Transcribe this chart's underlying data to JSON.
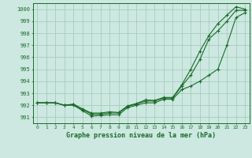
{
  "xlabel": "Graphe pression niveau de la mer (hPa)",
  "xlim": [
    -0.5,
    23.5
  ],
  "ylim": [
    990.5,
    1000.5
  ],
  "yticks": [
    991,
    992,
    993,
    994,
    995,
    996,
    997,
    998,
    999,
    1000
  ],
  "xticks": [
    0,
    1,
    2,
    3,
    4,
    5,
    6,
    7,
    8,
    9,
    10,
    11,
    12,
    13,
    14,
    15,
    16,
    17,
    18,
    19,
    20,
    21,
    22,
    23
  ],
  "background_color": "#cce8e0",
  "grid_color": "#a8ccbe",
  "line_color": "#1a6b2a",
  "line1": [
    992.2,
    992.2,
    992.2,
    992.0,
    992.0,
    991.55,
    991.1,
    991.15,
    991.2,
    991.2,
    991.8,
    992.0,
    992.2,
    992.2,
    992.5,
    992.5,
    993.3,
    993.6,
    994.0,
    994.5,
    995.0,
    997.0,
    999.3,
    999.7
  ],
  "line2": [
    992.2,
    992.2,
    992.2,
    992.0,
    992.05,
    991.65,
    991.25,
    991.25,
    991.35,
    991.35,
    991.9,
    992.1,
    992.35,
    992.35,
    992.6,
    992.6,
    993.6,
    994.5,
    995.8,
    997.5,
    998.2,
    999.0,
    999.9,
    999.9
  ],
  "line3": [
    992.2,
    992.2,
    992.2,
    992.0,
    992.1,
    991.7,
    991.35,
    991.35,
    991.45,
    991.4,
    991.95,
    992.15,
    992.45,
    992.4,
    992.65,
    992.65,
    993.7,
    995.0,
    996.5,
    997.8,
    998.8,
    999.5,
    1000.2,
    1000.0
  ]
}
